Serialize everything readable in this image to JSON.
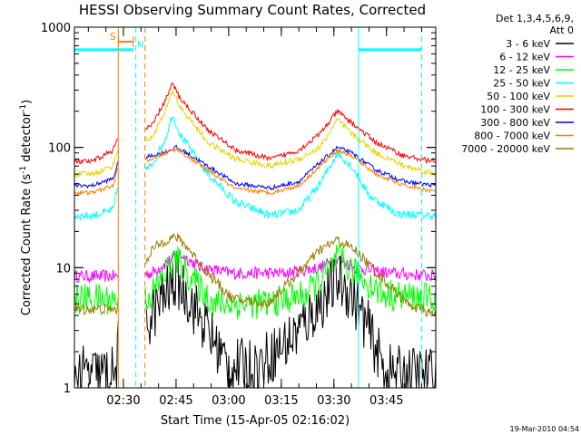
{
  "chart_data": {
    "type": "line",
    "title": "HESSI Observing Summary Count Rates, Corrected",
    "ylabel_main": "Corrected Count Rate (s",
    "ylabel_sup1": "-1",
    "ylabel_mid": " detector",
    "ylabel_sup2": "-1",
    "ylabel_end": ")",
    "xlabel": "Start Time (15-Apr-05 02:16:02)",
    "timestamp": "19-Mar-2010 04:54",
    "y_scale": "log",
    "ylim": [
      1,
      1000
    ],
    "xlim_minutes": [
      0,
      103
    ],
    "y_tick_labels": [
      {
        "value": 1,
        "label": "1"
      },
      {
        "value": 10,
        "label": "10"
      },
      {
        "value": 100,
        "label": "100"
      },
      {
        "value": 1000,
        "label": "1000"
      }
    ],
    "x_tick_labels": [
      {
        "minute": 13.97,
        "label": "02:30"
      },
      {
        "minute": 28.97,
        "label": "02:45"
      },
      {
        "minute": 43.97,
        "label": "03:00"
      },
      {
        "minute": 58.97,
        "label": "03:15"
      },
      {
        "minute": 73.97,
        "label": "03:30"
      },
      {
        "minute": 88.97,
        "label": "03:45"
      }
    ],
    "legend": {
      "placement": "right",
      "header": [
        "Det 1,3,4,5,6,9,",
        "Att 0"
      ],
      "entries": [
        {
          "label": "3 - 6 keV",
          "color": "#000000"
        },
        {
          "label": "6 - 12 keV",
          "color": "#ff00ff"
        },
        {
          "label": "12 - 25 keV",
          "color": "#00ff00"
        },
        {
          "label": "25 - 50 keV",
          "color": "#00ffff"
        },
        {
          "label": "50 - 100 keV",
          "color": "#e8d400"
        },
        {
          "label": "100 - 300 keV",
          "color": "#ff0000"
        },
        {
          "label": "300 - 800 keV",
          "color": "#0000ff"
        },
        {
          "label": "800 - 7000 keV",
          "color": "#ff8000"
        },
        {
          "label": "7000 - 20000 keV",
          "color": "#9a7a00"
        }
      ]
    },
    "annotations": {
      "saa_label": "S",
      "night_label": "N"
    },
    "series": [
      {
        "name": "3 - 6 keV",
        "color": "#000000",
        "noise": 0.55,
        "points": [
          [
            0,
            1.3
          ],
          [
            12,
            1.3
          ],
          [
            12.5,
            2.2
          ],
          [
            13,
            2.2
          ],
          [
            18,
            2.5
          ],
          [
            22,
            4
          ],
          [
            26,
            6
          ],
          [
            29,
            8
          ],
          [
            32,
            6
          ],
          [
            38,
            3
          ],
          [
            44,
            1.5
          ],
          [
            52,
            1.5
          ],
          [
            62,
            2.6
          ],
          [
            70,
            5
          ],
          [
            75,
            8
          ],
          [
            79,
            6
          ],
          [
            84,
            3
          ],
          [
            88,
            1.5
          ],
          [
            91,
            1.3
          ]
        ]
      },
      {
        "name": "6 - 12 keV",
        "color": "#ff00ff",
        "noise": 0.12,
        "points": [
          [
            0,
            8.5
          ],
          [
            13,
            8.5
          ],
          [
            22,
            9
          ],
          [
            28,
            12
          ],
          [
            30,
            13
          ],
          [
            36,
            10
          ],
          [
            45,
            9
          ],
          [
            60,
            9
          ],
          [
            70,
            10
          ],
          [
            75,
            12
          ],
          [
            80,
            10
          ],
          [
            90,
            9
          ],
          [
            103,
            8.5
          ]
        ]
      },
      {
        "name": "12 - 25 keV",
        "color": "#00ff00",
        "noise": 0.3,
        "points": [
          [
            0,
            5.5
          ],
          [
            12.5,
            5.5
          ],
          [
            12.5,
            4
          ],
          [
            13,
            4
          ],
          [
            22,
            6
          ],
          [
            26,
            9
          ],
          [
            29,
            12
          ],
          [
            32,
            9
          ],
          [
            40,
            5
          ],
          [
            55,
            5
          ],
          [
            66,
            6
          ],
          [
            72,
            9
          ],
          [
            75,
            12
          ],
          [
            80,
            9
          ],
          [
            88,
            6
          ],
          [
            103,
            5.5
          ]
        ]
      },
      {
        "name": "25 - 50 keV",
        "color": "#00ffff",
        "noise": 0.08,
        "points": [
          [
            0,
            27
          ],
          [
            5,
            27
          ],
          [
            11,
            30
          ],
          [
            12.5,
            50
          ],
          [
            13,
            50
          ],
          [
            22,
            70
          ],
          [
            26,
            120
          ],
          [
            28,
            190
          ],
          [
            30,
            130
          ],
          [
            38,
            60
          ],
          [
            46,
            35
          ],
          [
            56,
            27
          ],
          [
            64,
            30
          ],
          [
            70,
            50
          ],
          [
            75,
            90
          ],
          [
            79,
            70
          ],
          [
            84,
            40
          ],
          [
            92,
            28
          ],
          [
            103,
            27
          ]
        ]
      },
      {
        "name": "50 - 100 keV",
        "color": "#e8d400",
        "noise": 0.06,
        "points": [
          [
            0,
            60
          ],
          [
            5,
            60
          ],
          [
            11,
            70
          ],
          [
            12.5,
            100
          ],
          [
            13,
            100
          ],
          [
            22,
            120
          ],
          [
            26,
            200
          ],
          [
            28,
            300
          ],
          [
            30,
            220
          ],
          [
            38,
            110
          ],
          [
            46,
            80
          ],
          [
            56,
            70
          ],
          [
            64,
            80
          ],
          [
            70,
            100
          ],
          [
            75,
            170
          ],
          [
            79,
            130
          ],
          [
            86,
            90
          ],
          [
            94,
            70
          ],
          [
            103,
            60
          ]
        ]
      },
      {
        "name": "100 - 300 keV",
        "color": "#ff0000",
        "noise": 0.05,
        "points": [
          [
            0,
            76
          ],
          [
            5,
            76
          ],
          [
            11,
            95
          ],
          [
            12.5,
            120
          ],
          [
            13,
            120
          ],
          [
            22,
            150
          ],
          [
            26,
            250
          ],
          [
            28,
            340
          ],
          [
            30,
            260
          ],
          [
            38,
            140
          ],
          [
            46,
            95
          ],
          [
            56,
            80
          ],
          [
            64,
            95
          ],
          [
            70,
            130
          ],
          [
            75,
            200
          ],
          [
            79,
            160
          ],
          [
            86,
            110
          ],
          [
            94,
            85
          ],
          [
            103,
            76
          ]
        ]
      },
      {
        "name": "300 - 800 keV",
        "color": "#0000ff",
        "noise": 0.04,
        "points": [
          [
            0,
            48
          ],
          [
            5,
            48
          ],
          [
            11,
            55
          ],
          [
            12.5,
            75
          ],
          [
            13,
            75
          ],
          [
            22,
            85
          ],
          [
            26,
            92
          ],
          [
            29,
            100
          ],
          [
            32,
            90
          ],
          [
            38,
            70
          ],
          [
            46,
            50
          ],
          [
            56,
            46
          ],
          [
            64,
            52
          ],
          [
            70,
            75
          ],
          [
            75,
            100
          ],
          [
            79,
            90
          ],
          [
            86,
            65
          ],
          [
            94,
            52
          ],
          [
            103,
            48
          ]
        ]
      },
      {
        "name": "800 - 7000 keV",
        "color": "#ff8000",
        "noise": 0.04,
        "points": [
          [
            0,
            42
          ],
          [
            5,
            42
          ],
          [
            11,
            48
          ],
          [
            12.5,
            68
          ],
          [
            13,
            68
          ],
          [
            22,
            80
          ],
          [
            26,
            90
          ],
          [
            29,
            97
          ],
          [
            32,
            85
          ],
          [
            38,
            65
          ],
          [
            46,
            45
          ],
          [
            56,
            42
          ],
          [
            64,
            48
          ],
          [
            70,
            70
          ],
          [
            75,
            95
          ],
          [
            79,
            85
          ],
          [
            86,
            60
          ],
          [
            94,
            48
          ],
          [
            103,
            43
          ]
        ]
      },
      {
        "name": "7000 - 20000 keV",
        "color": "#9a7a00",
        "noise": 0.1,
        "points": [
          [
            0,
            4.5
          ],
          [
            12.5,
            4.5
          ],
          [
            13,
            4.5
          ],
          [
            22,
            14
          ],
          [
            26,
            17
          ],
          [
            29,
            18
          ],
          [
            32,
            15
          ],
          [
            38,
            9
          ],
          [
            45,
            5.5
          ],
          [
            55,
            5
          ],
          [
            62,
            8
          ],
          [
            70,
            14
          ],
          [
            75,
            17
          ],
          [
            80,
            14
          ],
          [
            88,
            8
          ],
          [
            95,
            5
          ],
          [
            103,
            4
          ]
        ]
      }
    ],
    "saa_interval_minutes": [
      12.5,
      16.8
    ],
    "night_interval_minutes": [
      17.5,
      20.1
    ],
    "flag_lines": [
      {
        "minute": 12.5,
        "color": "#ff8000",
        "style": "solid"
      },
      {
        "minute": 17.5,
        "color": "#00ffff",
        "style": "dashed"
      },
      {
        "minute": 20.1,
        "color": "#ff8000",
        "style": "dashed"
      },
      {
        "minute": 81.0,
        "color": "#00ffff",
        "style": "solid"
      },
      {
        "minute": 99.0,
        "color": "#00ffff",
        "style": "dashed"
      }
    ],
    "attenuator_level": 650,
    "attenuator_segments": [
      [
        0,
        16.8
      ],
      [
        81.0,
        99.0
      ]
    ]
  }
}
